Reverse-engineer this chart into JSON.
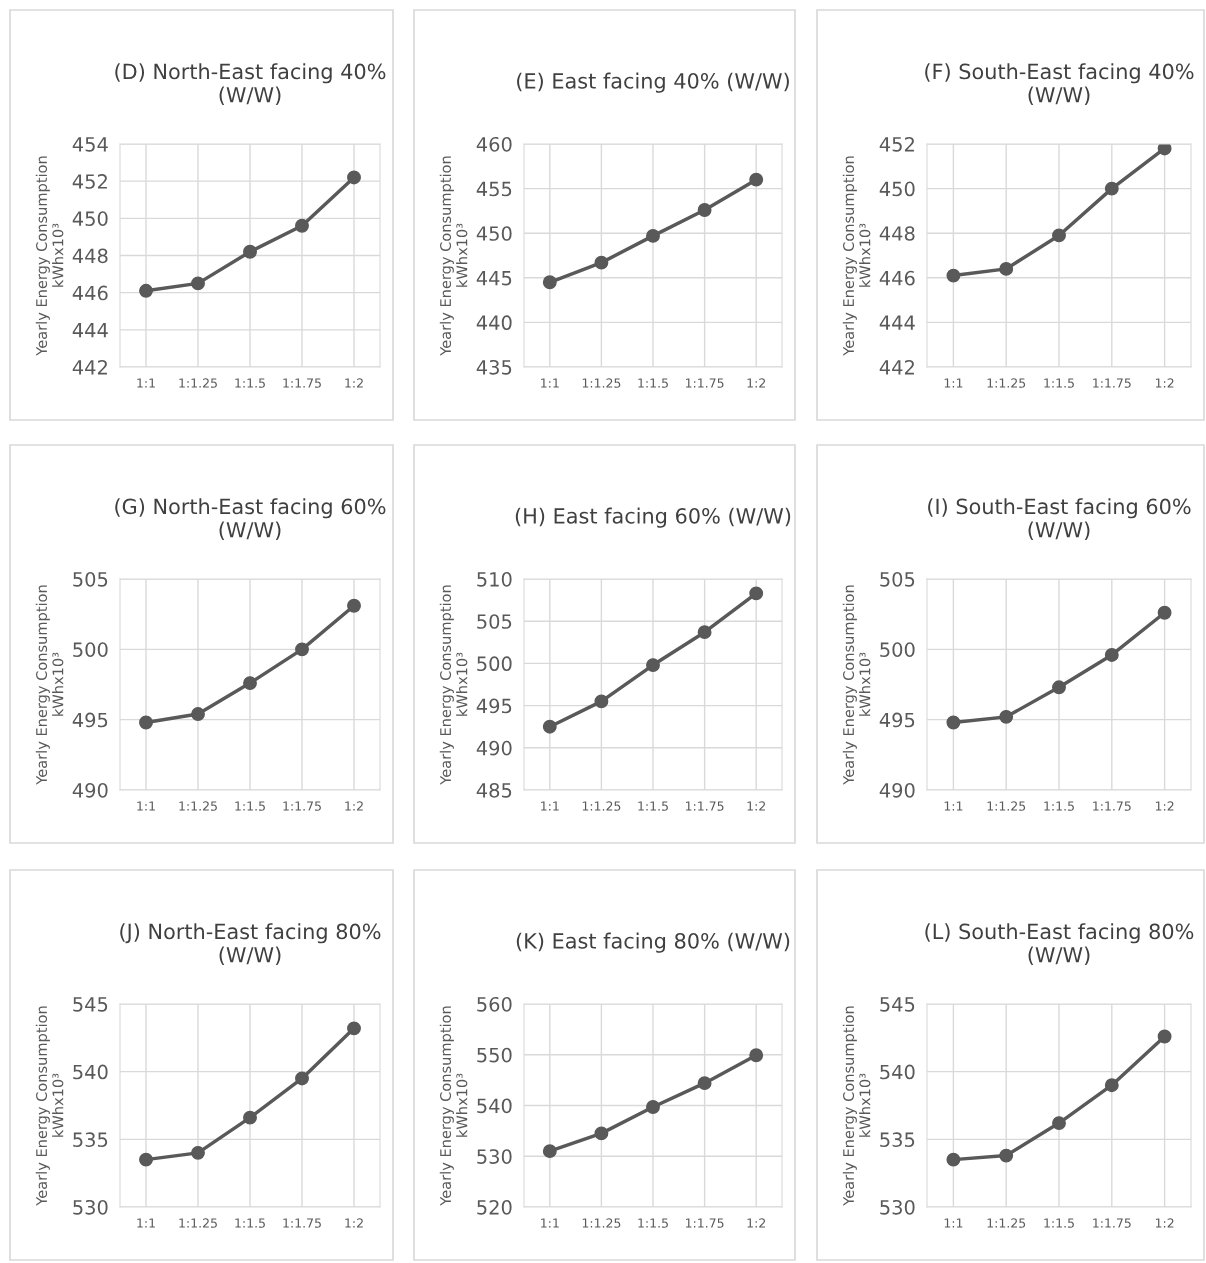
{
  "chart_data": [
    {
      "type": "line",
      "title": "(D) North-East facing 40%\n(W/W)",
      "ylabel": "Yearly Energy Consumption\nkWhx10³",
      "categories": [
        "1:1",
        "1:1.25",
        "1:1.5",
        "1:1.75",
        "1:2"
      ],
      "series": [
        {
          "color": "#595959",
          "values": [
            446.1,
            446.5,
            448.2,
            449.6,
            452.2
          ]
        }
      ],
      "ylim": [
        442,
        454
      ],
      "yticks": [
        442,
        444,
        446,
        448,
        450,
        452,
        454
      ],
      "grid": true,
      "marker": "circle",
      "line_style": "solid"
    },
    {
      "type": "line",
      "title": "(E) East facing 40% (W/W)",
      "ylabel": "Yearly Energy Consumption\nkWhx10³",
      "categories": [
        "1:1",
        "1:1.25",
        "1:1.5",
        "1:1.75",
        "1:2"
      ],
      "series": [
        {
          "color": "#595959",
          "values": [
            444.5,
            446.7,
            449.7,
            452.6,
            456.0
          ]
        }
      ],
      "ylim": [
        435,
        460
      ],
      "yticks": [
        435,
        440,
        445,
        450,
        455,
        460
      ],
      "grid": true,
      "marker": "circle",
      "line_style": "solid"
    },
    {
      "type": "line",
      "title": "(F) South-East facing 40%\n(W/W)",
      "ylabel": "Yearly Energy Consumption\nkWhx10³",
      "categories": [
        "1:1",
        "1:1.25",
        "1:1.5",
        "1:1.75",
        "1:2"
      ],
      "series": [
        {
          "color": "#595959",
          "values": [
            446.1,
            446.4,
            447.9,
            450.0,
            451.8
          ]
        }
      ],
      "ylim": [
        442,
        452
      ],
      "yticks": [
        442,
        444,
        446,
        448,
        450,
        452
      ],
      "grid": true,
      "marker": "circle",
      "line_style": "solid"
    },
    {
      "type": "line",
      "title": "(G) North-East facing 60%\n(W/W)",
      "ylabel": "Yearly Energy Consumption\nkWhx10³",
      "categories": [
        "1:1",
        "1:1.25",
        "1:1.5",
        "1:1.75",
        "1:2"
      ],
      "series": [
        {
          "color": "#595959",
          "values": [
            494.8,
            495.4,
            497.6,
            500.0,
            503.1
          ]
        }
      ],
      "ylim": [
        490,
        505
      ],
      "yticks": [
        490,
        495,
        500,
        505
      ],
      "grid": true,
      "marker": "circle",
      "line_style": "solid"
    },
    {
      "type": "line",
      "title": "(H) East facing 60% (W/W)",
      "ylabel": "Yearly Energy Consumption\nkWhx10³",
      "categories": [
        "1:1",
        "1:1.25",
        "1:1.5",
        "1:1.75",
        "1:2"
      ],
      "series": [
        {
          "color": "#595959",
          "values": [
            492.5,
            495.5,
            499.8,
            503.7,
            508.3
          ]
        }
      ],
      "ylim": [
        485,
        510
      ],
      "yticks": [
        485,
        490,
        495,
        500,
        505,
        510
      ],
      "grid": true,
      "marker": "circle",
      "line_style": "solid"
    },
    {
      "type": "line",
      "title": "(I) South-East facing 60%\n(W/W)",
      "ylabel": "Yearly Energy Consumption\nkWhx10³",
      "categories": [
        "1:1",
        "1:1.25",
        "1:1.5",
        "1:1.75",
        "1:2"
      ],
      "series": [
        {
          "color": "#595959",
          "values": [
            494.8,
            495.2,
            497.3,
            499.6,
            502.6
          ]
        }
      ],
      "ylim": [
        490,
        505
      ],
      "yticks": [
        490,
        495,
        500,
        505
      ],
      "grid": true,
      "marker": "circle",
      "line_style": "solid"
    },
    {
      "type": "line",
      "title": "(J) North-East facing 80%\n(W/W)",
      "ylabel": "Yearly Energy Consumption\nkWhx10³",
      "categories": [
        "1:1",
        "1:1.25",
        "1:1.5",
        "1:1.75",
        "1:2"
      ],
      "series": [
        {
          "color": "#595959",
          "values": [
            533.5,
            534.0,
            536.6,
            539.5,
            543.2
          ]
        }
      ],
      "ylim": [
        530,
        545
      ],
      "yticks": [
        530,
        535,
        540,
        545
      ],
      "grid": true,
      "marker": "circle",
      "line_style": "solid"
    },
    {
      "type": "line",
      "title": "(K) East facing 80% (W/W)",
      "ylabel": "Yearly Energy Consumption\nkWhx10³",
      "categories": [
        "1:1",
        "1:1.25",
        "1:1.5",
        "1:1.75",
        "1:2"
      ],
      "series": [
        {
          "color": "#595959",
          "values": [
            531.0,
            534.5,
            539.7,
            544.4,
            549.9
          ]
        }
      ],
      "ylim": [
        520,
        560
      ],
      "yticks": [
        520,
        530,
        540,
        550,
        560
      ],
      "grid": true,
      "marker": "circle",
      "line_style": "solid"
    },
    {
      "type": "line",
      "title": "(L) South-East facing 80%\n(W/W)",
      "ylabel": "Yearly Energy Consumption\nkWhx10³",
      "categories": [
        "1:1",
        "1:1.25",
        "1:1.5",
        "1:1.75",
        "1:2"
      ],
      "series": [
        {
          "color": "#595959",
          "values": [
            533.5,
            533.8,
            536.2,
            539.0,
            542.6
          ]
        }
      ],
      "ylim": [
        530,
        545
      ],
      "yticks": [
        530,
        535,
        540,
        545
      ],
      "grid": true,
      "marker": "circle",
      "line_style": "solid"
    }
  ]
}
